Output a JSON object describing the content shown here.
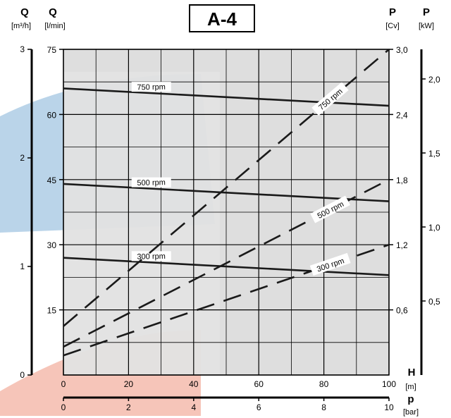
{
  "title": "A-4",
  "colors": {
    "plot_bg": "#d8d8d8",
    "light_panel": "#e6e6e6",
    "blue_logo": "#a9c9e3",
    "red_logo": "#f4b7a8",
    "grid": "#000000",
    "curve": "#1a1a1a"
  },
  "left_axes": [
    {
      "name": "Q",
      "unit": "[m³/h]",
      "ticks": [
        "3",
        "2",
        "1",
        "0"
      ]
    },
    {
      "name": "Q",
      "unit": "[l/min]",
      "ticks": [
        "75",
        "60",
        "45",
        "30",
        "15"
      ]
    }
  ],
  "right_axes": [
    {
      "name": "P",
      "unit": "[Cv]",
      "ticks": [
        "3,0",
        "2,4",
        "1,8",
        "1,2",
        "0,6"
      ]
    },
    {
      "name": "P",
      "unit": "[kW]",
      "ticks": [
        "2,0",
        "1,5",
        "1,0",
        "0,5"
      ]
    }
  ],
  "bottom_axes": [
    {
      "name": "H",
      "unit": "[m]",
      "ticks": [
        "0",
        "20",
        "40",
        "60",
        "80",
        "100"
      ]
    },
    {
      "name": "p",
      "unit": "[bar]",
      "ticks": [
        "0",
        "2",
        "4",
        "6",
        "8",
        "10"
      ]
    }
  ],
  "chart_data": {
    "type": "line",
    "title": "A-4",
    "x": {
      "label": "H [m]",
      "range": [
        0,
        100
      ],
      "secondary": {
        "label": "p [bar]",
        "range": [
          0,
          10
        ]
      }
    },
    "y_left": {
      "label": "Q [l/min]",
      "range": [
        0,
        75
      ],
      "secondary": {
        "label": "Q [m³/h]",
        "range": [
          0,
          3
        ]
      }
    },
    "y_right": {
      "label": "P [Cv]",
      "range": [
        0,
        3.0
      ],
      "secondary": {
        "label": "P [kW]",
        "range": [
          0,
          2.2
        ]
      }
    },
    "grid": true,
    "flow_series": [
      {
        "name": "750 rpm",
        "axis": "left",
        "style": "solid",
        "x": [
          0,
          100
        ],
        "y": [
          66,
          62
        ]
      },
      {
        "name": "500 rpm",
        "axis": "left",
        "style": "solid",
        "x": [
          0,
          100
        ],
        "y": [
          44,
          40
        ]
      },
      {
        "name": "300 rpm",
        "axis": "left",
        "style": "solid",
        "x": [
          0,
          100
        ],
        "y": [
          27,
          23
        ]
      }
    ],
    "power_series": [
      {
        "name": "750 rpm",
        "axis": "right",
        "style": "dashed",
        "x": [
          0,
          100
        ],
        "y": [
          0.45,
          3.0
        ]
      },
      {
        "name": "500 rpm",
        "axis": "right",
        "style": "dashed",
        "x": [
          0,
          100
        ],
        "y": [
          0.26,
          1.8
        ]
      },
      {
        "name": "300 rpm",
        "axis": "right",
        "style": "dashed",
        "x": [
          0,
          100
        ],
        "y": [
          0.18,
          1.2
        ]
      }
    ]
  }
}
